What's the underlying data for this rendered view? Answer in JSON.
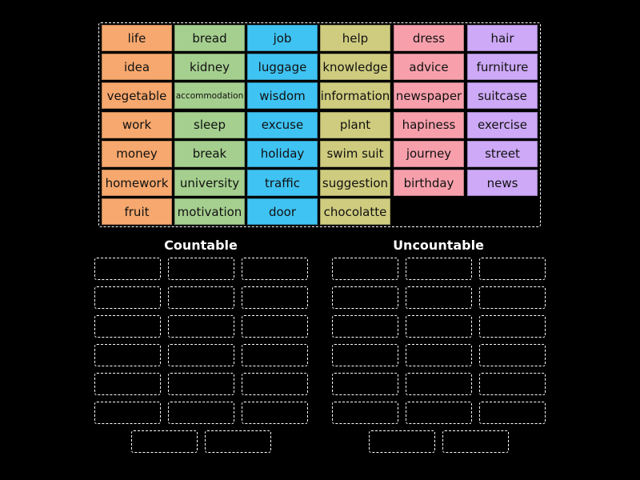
{
  "tiles": [
    {
      "color": "#f7a86e",
      "words": [
        "life",
        "idea",
        "vegetable",
        "work",
        "money",
        "homework",
        "fruit"
      ]
    },
    {
      "color": "#a5cf8f",
      "words": [
        "bread",
        "kidney",
        "accommodation",
        "sleep",
        "break",
        "university",
        "motivation"
      ]
    },
    {
      "color": "#3fc3f3",
      "words": [
        "job",
        "luggage",
        "wisdom",
        "excuse",
        "holiday",
        "traffic",
        "door"
      ]
    },
    {
      "color": "#cfcc7f",
      "words": [
        "help",
        "knowledge",
        "information",
        "plant",
        "swim suit",
        "suggestion",
        "chocolatte"
      ]
    },
    {
      "color": "#f7a0ac",
      "words": [
        "dress",
        "advice",
        "newspaper",
        "hapiness",
        "journey",
        "birthday"
      ]
    },
    {
      "color": "#cda9f7",
      "words": [
        "hair",
        "furniture",
        "suitcase",
        "exercise",
        "street",
        "news"
      ]
    }
  ],
  "groups": [
    {
      "title": "Countable"
    },
    {
      "title": "Uncountable"
    }
  ]
}
